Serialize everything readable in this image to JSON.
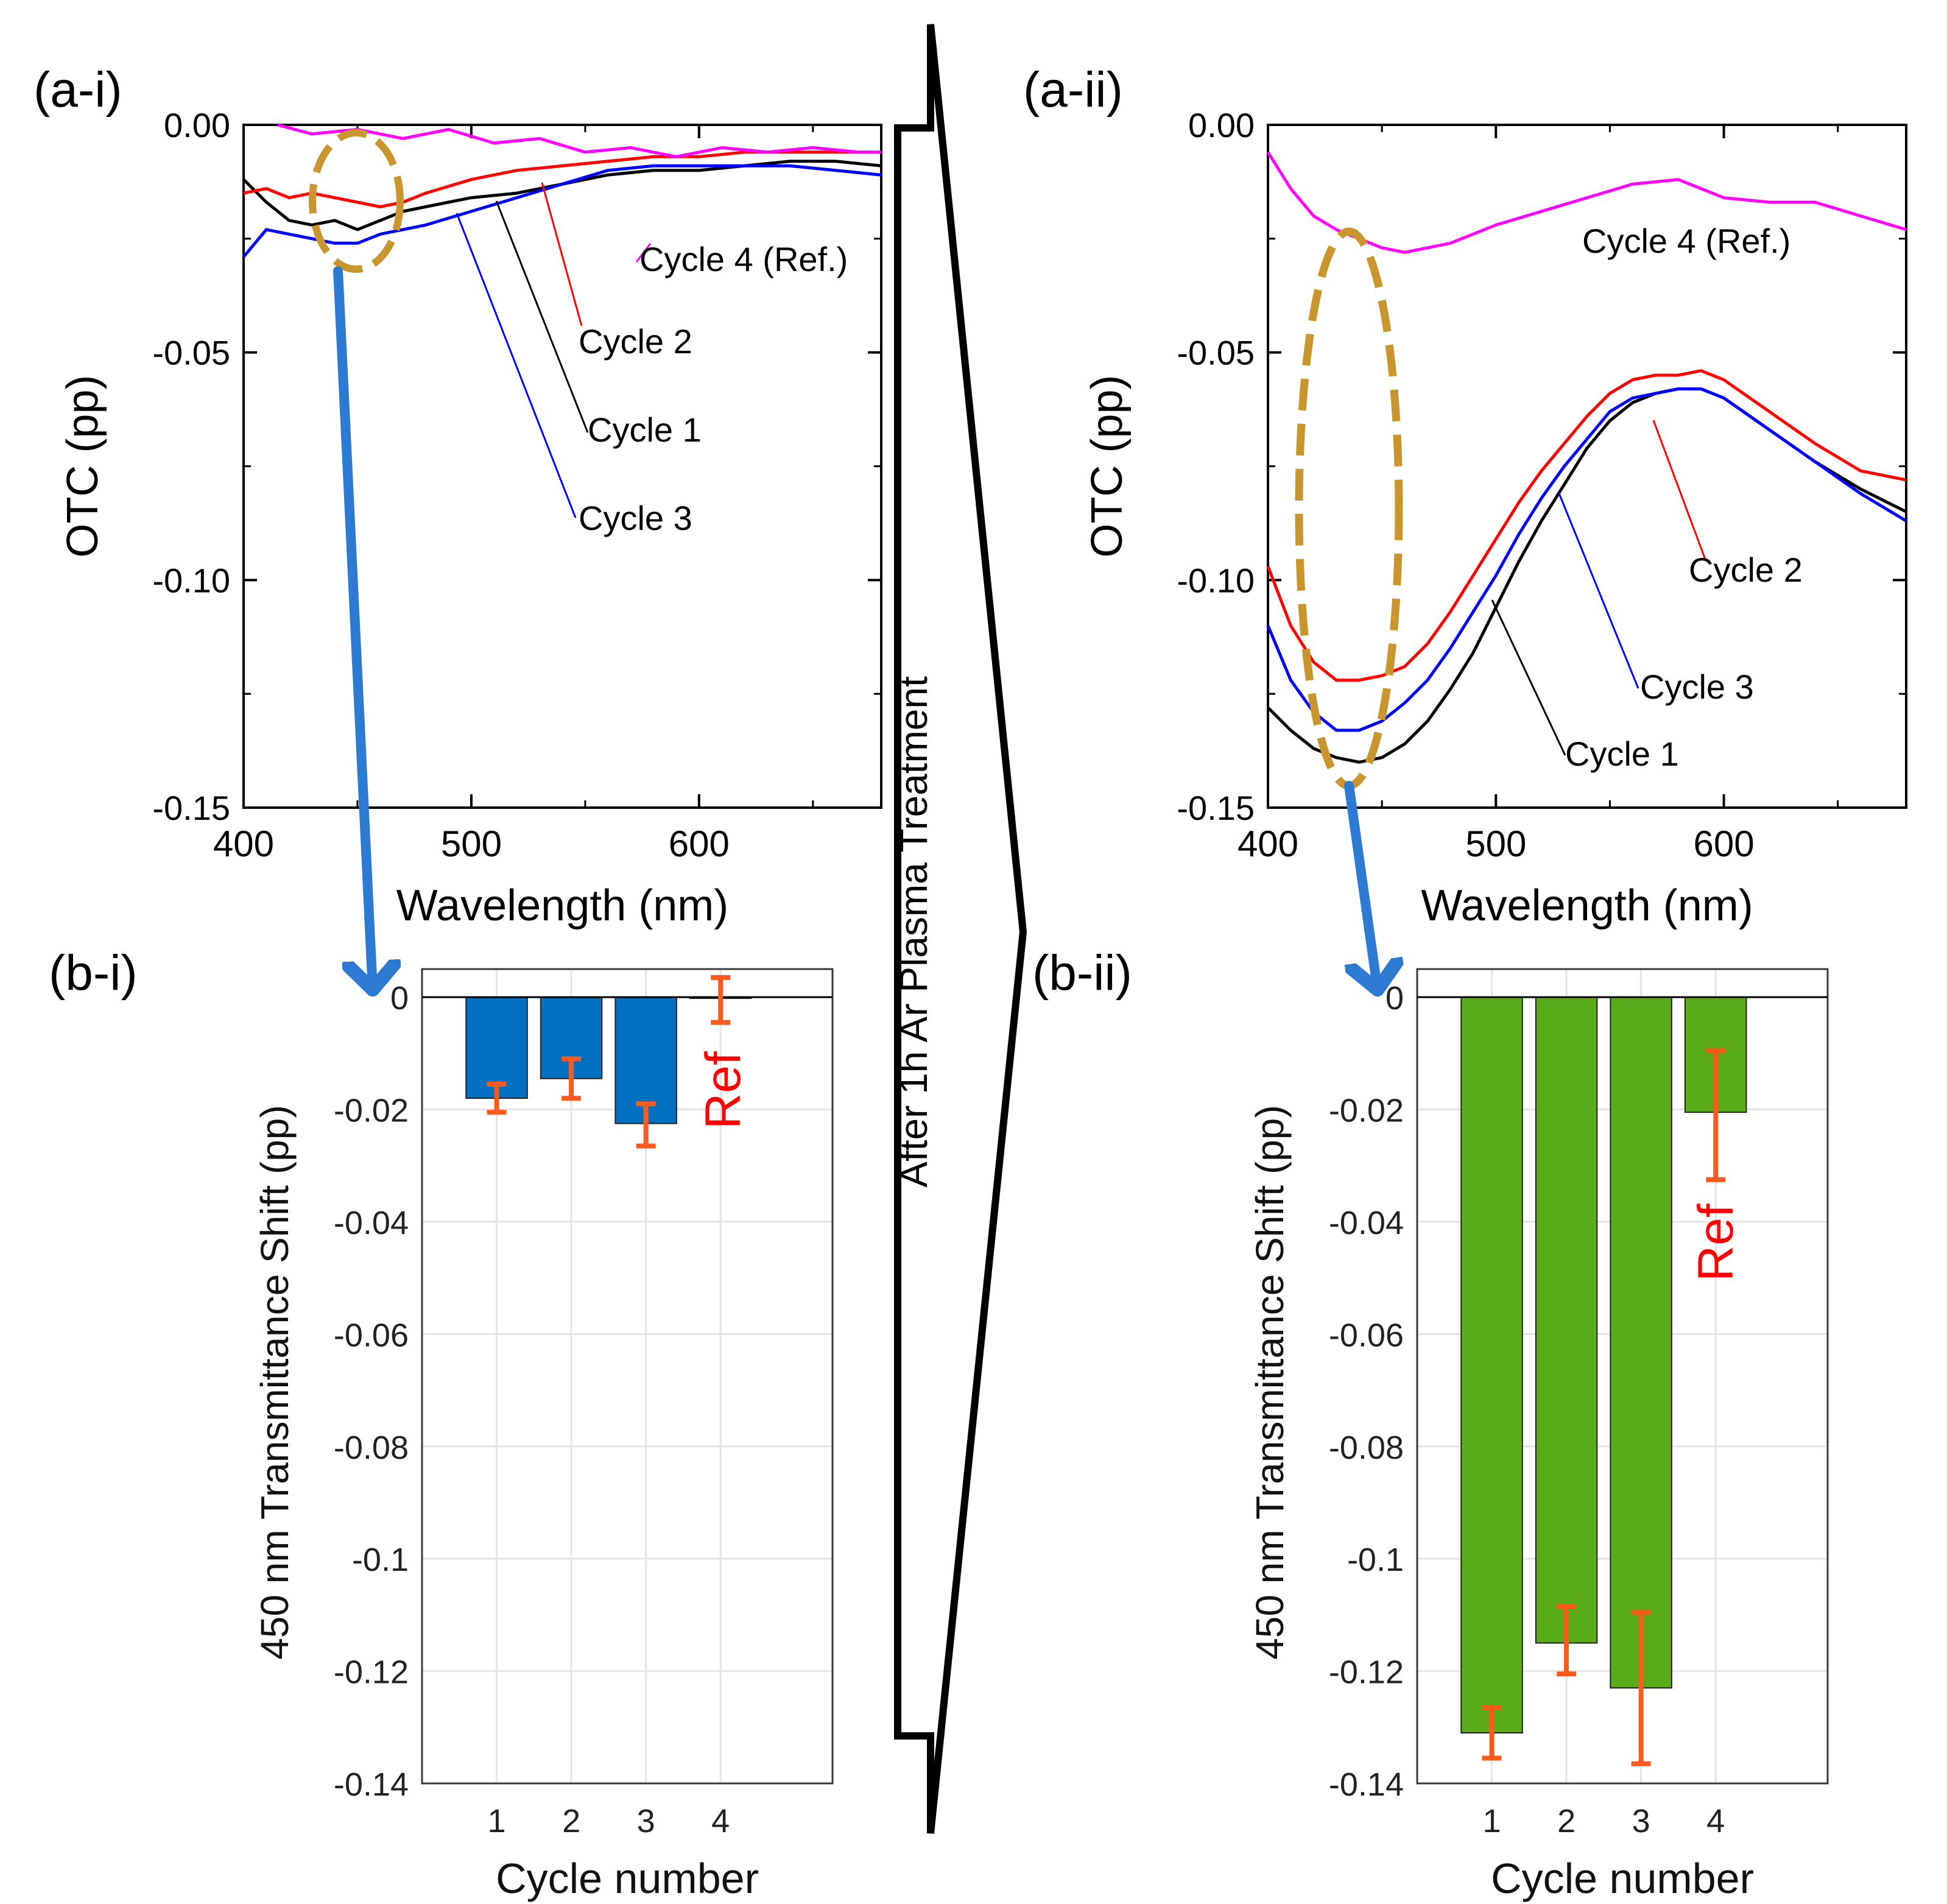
{
  "figure": {
    "center_label": "After 1h Ar Plasma Treatment",
    "colors": {
      "cycle1": "#000000",
      "cycle2": "#ff0000",
      "cycle3": "#0000ff",
      "cycle4": "#ff00ff",
      "bar_i": "#0070c0",
      "bar_ii": "#5aab1a",
      "error": "#ff5a1e",
      "ellipse": "#c8962c",
      "arrow": "#2c7ad1",
      "ref_text": "#ff0000"
    }
  },
  "chart_data": [
    {
      "id": "a-i",
      "panel_label": "(a-i)",
      "type": "line",
      "xlabel": "Wavelength (nm)",
      "ylabel": "OTC (pp)",
      "xlim": [
        400,
        680
      ],
      "ylim": [
        -0.15,
        0.0
      ],
      "xticks": [
        "400",
        "500",
        "600"
      ],
      "yticks": [
        "0.00",
        "-0.05",
        "-0.10",
        "-0.15"
      ],
      "series": [
        {
          "name": "Cycle 1",
          "label": "Cycle 1",
          "color": "#000000",
          "x": [
            400,
            410,
            420,
            430,
            440,
            450,
            460,
            470,
            480,
            490,
            500,
            520,
            540,
            560,
            580,
            600,
            620,
            640,
            660,
            680
          ],
          "y": [
            -0.012,
            -0.017,
            -0.021,
            -0.022,
            -0.021,
            -0.023,
            -0.021,
            -0.019,
            -0.018,
            -0.017,
            -0.016,
            -0.015,
            -0.013,
            -0.011,
            -0.01,
            -0.01,
            -0.009,
            -0.008,
            -0.008,
            -0.009
          ]
        },
        {
          "name": "Cycle 2",
          "label": "Cycle 2",
          "color": "#ff0000",
          "x": [
            400,
            410,
            420,
            430,
            440,
            450,
            460,
            470,
            480,
            500,
            520,
            540,
            560,
            580,
            600,
            620,
            640,
            660,
            680
          ],
          "y": [
            -0.015,
            -0.014,
            -0.016,
            -0.015,
            -0.016,
            -0.017,
            -0.018,
            -0.017,
            -0.015,
            -0.012,
            -0.01,
            -0.009,
            -0.008,
            -0.007,
            -0.007,
            -0.006,
            -0.006,
            -0.006,
            -0.006
          ]
        },
        {
          "name": "Cycle 3",
          "label": "Cycle 3",
          "color": "#0000ff",
          "x": [
            400,
            410,
            420,
            430,
            440,
            450,
            460,
            470,
            480,
            500,
            520,
            540,
            560,
            580,
            600,
            620,
            640,
            660,
            680
          ],
          "y": [
            -0.029,
            -0.023,
            -0.024,
            -0.025,
            -0.026,
            -0.026,
            -0.024,
            -0.023,
            -0.022,
            -0.019,
            -0.016,
            -0.013,
            -0.01,
            -0.009,
            -0.009,
            -0.009,
            -0.009,
            -0.01,
            -0.011
          ]
        },
        {
          "name": "Cycle 4 (Ref.)",
          "label": "Cycle 4 (Ref.)",
          "color": "#ff00ff",
          "x": [
            415,
            430,
            450,
            470,
            490,
            510,
            530,
            550,
            570,
            590,
            610,
            630,
            650,
            670,
            680
          ],
          "y": [
            0.0,
            -0.002,
            -0.001,
            -0.003,
            -0.001,
            -0.004,
            -0.003,
            -0.006,
            -0.005,
            -0.007,
            -0.005,
            -0.006,
            -0.005,
            -0.006,
            -0.006
          ]
        }
      ]
    },
    {
      "id": "a-ii",
      "panel_label": "(a-ii)",
      "type": "line",
      "xlabel": "Wavelength (nm)",
      "ylabel": "OTC (pp)",
      "xlim": [
        400,
        680
      ],
      "ylim": [
        -0.15,
        0.0
      ],
      "xticks": [
        "400",
        "500",
        "600"
      ],
      "yticks": [
        "0.00",
        "-0.05",
        "-0.10",
        "-0.15"
      ],
      "series": [
        {
          "name": "Cycle 1",
          "label": "Cycle 1",
          "color": "#000000",
          "x": [
            400,
            410,
            420,
            430,
            440,
            450,
            460,
            470,
            480,
            490,
            500,
            510,
            520,
            530,
            540,
            550,
            560,
            570,
            580,
            590,
            600,
            620,
            640,
            660,
            680
          ],
          "y": [
            -0.128,
            -0.133,
            -0.137,
            -0.139,
            -0.14,
            -0.139,
            -0.136,
            -0.131,
            -0.124,
            -0.116,
            -0.106,
            -0.096,
            -0.087,
            -0.079,
            -0.071,
            -0.065,
            -0.061,
            -0.059,
            -0.058,
            -0.058,
            -0.06,
            -0.067,
            -0.074,
            -0.08,
            -0.085
          ]
        },
        {
          "name": "Cycle 2",
          "label": "Cycle 2",
          "color": "#ff0000",
          "x": [
            400,
            410,
            420,
            430,
            440,
            450,
            460,
            470,
            480,
            490,
            500,
            510,
            520,
            530,
            540,
            550,
            560,
            570,
            580,
            590,
            600,
            620,
            640,
            660,
            680
          ],
          "y": [
            -0.097,
            -0.11,
            -0.118,
            -0.122,
            -0.122,
            -0.121,
            -0.119,
            -0.114,
            -0.107,
            -0.099,
            -0.091,
            -0.083,
            -0.076,
            -0.07,
            -0.064,
            -0.059,
            -0.056,
            -0.055,
            -0.055,
            -0.054,
            -0.056,
            -0.063,
            -0.07,
            -0.076,
            -0.078
          ]
        },
        {
          "name": "Cycle 3",
          "label": "Cycle 3",
          "color": "#0000ff",
          "x": [
            400,
            410,
            420,
            430,
            440,
            450,
            460,
            470,
            480,
            490,
            500,
            510,
            520,
            530,
            540,
            550,
            560,
            570,
            580,
            590,
            600,
            620,
            640,
            660,
            680
          ],
          "y": [
            -0.11,
            -0.122,
            -0.129,
            -0.133,
            -0.133,
            -0.131,
            -0.127,
            -0.122,
            -0.115,
            -0.107,
            -0.099,
            -0.09,
            -0.082,
            -0.075,
            -0.069,
            -0.063,
            -0.06,
            -0.059,
            -0.058,
            -0.058,
            -0.06,
            -0.067,
            -0.074,
            -0.081,
            -0.087
          ]
        },
        {
          "name": "Cycle 4 (Ref.)",
          "label": "Cycle 4 (Ref.)",
          "color": "#ff00ff",
          "x": [
            400,
            410,
            420,
            430,
            440,
            450,
            460,
            470,
            480,
            500,
            520,
            540,
            560,
            580,
            600,
            620,
            640,
            660,
            680
          ],
          "y": [
            -0.006,
            -0.014,
            -0.02,
            -0.023,
            -0.025,
            -0.027,
            -0.028,
            -0.027,
            -0.026,
            -0.022,
            -0.019,
            -0.016,
            -0.013,
            -0.012,
            -0.016,
            -0.017,
            -0.017,
            -0.02,
            -0.023
          ]
        }
      ]
    },
    {
      "id": "b-i",
      "panel_label": "(b-i)",
      "type": "bar",
      "xlabel": "Cycle number",
      "ylabel": "450 nm Transmittance Shift (pp)",
      "ylim": [
        -0.14,
        0.005
      ],
      "categories": [
        "1",
        "2",
        "3",
        "4"
      ],
      "yticks": [
        "0",
        "-0.02",
        "-0.04",
        "-0.06",
        "-0.08",
        "-0.1",
        "-0.12",
        "-0.14"
      ],
      "values": [
        -0.018,
        -0.0145,
        -0.0225,
        0.0
      ],
      "error_low": [
        -0.0205,
        -0.018,
        -0.0265,
        -0.0045
      ],
      "error_high": [
        -0.0155,
        -0.011,
        -0.019,
        0.0035
      ],
      "annotation": "Ref"
    },
    {
      "id": "b-ii",
      "panel_label": "(b-ii)",
      "type": "bar",
      "xlabel": "Cycle number",
      "ylabel": "450 nm Transmittance Shift (pp)",
      "ylim": [
        -0.14,
        0.005
      ],
      "categories": [
        "1",
        "2",
        "3",
        "4"
      ],
      "yticks": [
        "0",
        "-0.02",
        "-0.04",
        "-0.06",
        "-0.08",
        "-0.1",
        "-0.12",
        "-0.14"
      ],
      "values": [
        -0.131,
        -0.115,
        -0.123,
        -0.0205
      ],
      "error_low": [
        -0.1355,
        -0.1205,
        -0.1365,
        -0.0325
      ],
      "error_high": [
        -0.1265,
        -0.1085,
        -0.1095,
        -0.0095
      ],
      "annotation": "Ref"
    }
  ]
}
